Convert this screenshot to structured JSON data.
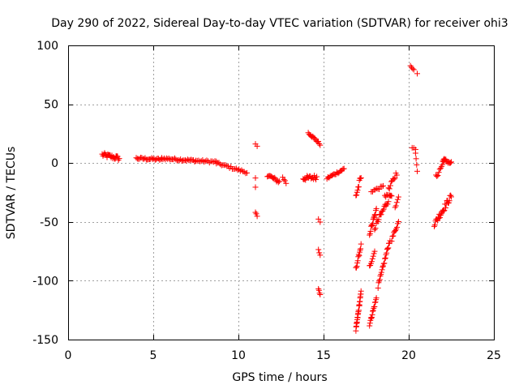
{
  "chart_data": {
    "type": "scatter",
    "title": "Day 290 of 2022, Sidereal Day-to-day VTEC variation (SDTVAR) for receiver ohi3",
    "xlabel": "GPS time / hours",
    "ylabel": "SDTVAR / TECUs",
    "xlim": [
      0,
      25
    ],
    "ylim": [
      -150,
      100
    ],
    "xticks": [
      0,
      5,
      10,
      15,
      20,
      25
    ],
    "yticks": [
      -150,
      -100,
      -50,
      0,
      50,
      100
    ],
    "xtick_labels": [
      "0",
      "5",
      "10",
      "15",
      "20",
      "25"
    ],
    "ytick_labels": [
      "-150",
      "-100",
      "-50",
      "0",
      "50",
      "100"
    ],
    "grid": true,
    "marker": "+",
    "color": "#ff0000",
    "segments": [
      {
        "x": [
          2.0,
          3.0
        ],
        "y": [
          7,
          4
        ],
        "n": 22,
        "spread": 4
      },
      {
        "x": [
          4.0,
          5.5
        ],
        "y": [
          4,
          3
        ],
        "n": 24,
        "spread": 2
      },
      {
        "x": [
          5.5,
          7.5
        ],
        "y": [
          4,
          2
        ],
        "n": 30,
        "spread": 2
      },
      {
        "x": [
          7.5,
          8.7
        ],
        "y": [
          2,
          1
        ],
        "n": 16,
        "spread": 2
      },
      {
        "x": [
          8.7,
          10.5
        ],
        "y": [
          0,
          -8
        ],
        "n": 24,
        "spread": 2
      },
      {
        "x": [
          11.0,
          11.1
        ],
        "y": [
          16,
          14
        ],
        "n": 2,
        "spread": 1
      },
      {
        "x": [
          11.0,
          11.0
        ],
        "y": [
          -13,
          -21
        ],
        "n": 2,
        "spread": 1
      },
      {
        "x": [
          11.0,
          11.1
        ],
        "y": [
          -42,
          -45
        ],
        "n": 3,
        "spread": 1
      },
      {
        "x": [
          11.7,
          12.4
        ],
        "y": [
          -10,
          -16
        ],
        "n": 14,
        "spread": 3
      },
      {
        "x": [
          12.6,
          12.8
        ],
        "y": [
          -12,
          -17
        ],
        "n": 4,
        "spread": 2
      },
      {
        "x": [
          13.8,
          14.6
        ],
        "y": [
          -13,
          -12
        ],
        "n": 18,
        "spread": 4
      },
      {
        "x": [
          14.1,
          14.8
        ],
        "y": [
          26,
          16
        ],
        "n": 14,
        "spread": 2
      },
      {
        "x": [
          14.7,
          14.8
        ],
        "y": [
          -48,
          -50
        ],
        "n": 2,
        "spread": 1
      },
      {
        "x": [
          14.7,
          14.8
        ],
        "y": [
          -74,
          -78
        ],
        "n": 3,
        "spread": 1
      },
      {
        "x": [
          14.7,
          14.8
        ],
        "y": [
          -107,
          -112
        ],
        "n": 4,
        "spread": 1
      },
      {
        "x": [
          15.2,
          16.2
        ],
        "y": [
          -13,
          -5
        ],
        "n": 18,
        "spread": 2
      },
      {
        "x": [
          16.9,
          17.2
        ],
        "y": [
          -28,
          -12
        ],
        "n": 10,
        "spread": 6
      },
      {
        "x": [
          16.9,
          17.2
        ],
        "y": [
          -90,
          -70
        ],
        "n": 12,
        "spread": 3
      },
      {
        "x": [
          16.9,
          17.2
        ],
        "y": [
          -142,
          -110
        ],
        "n": 24,
        "spread": 3
      },
      {
        "x": [
          17.7,
          18.1
        ],
        "y": [
          -60,
          -40
        ],
        "n": 14,
        "spread": 4
      },
      {
        "x": [
          17.7,
          18.0
        ],
        "y": [
          -88,
          -75
        ],
        "n": 8,
        "spread": 3
      },
      {
        "x": [
          17.7,
          18.1
        ],
        "y": [
          -137,
          -115
        ],
        "n": 16,
        "spread": 3
      },
      {
        "x": [
          17.8,
          18.5
        ],
        "y": [
          -24,
          -20
        ],
        "n": 10,
        "spread": 2
      },
      {
        "x": [
          18.0,
          19.0
        ],
        "y": [
          -55,
          -25
        ],
        "n": 22,
        "spread": 6
      },
      {
        "x": [
          18.2,
          18.9
        ],
        "y": [
          -105,
          -65
        ],
        "n": 22,
        "spread": 3
      },
      {
        "x": [
          18.6,
          19.3
        ],
        "y": [
          -30,
          -8
        ],
        "n": 14,
        "spread": 5
      },
      {
        "x": [
          19.0,
          19.4
        ],
        "y": [
          -65,
          -50
        ],
        "n": 10,
        "spread": 3
      },
      {
        "x": [
          19.2,
          19.4
        ],
        "y": [
          -38,
          -28
        ],
        "n": 5,
        "spread": 2
      },
      {
        "x": [
          20.1,
          20.3
        ],
        "y": [
          83,
          79
        ],
        "n": 4,
        "spread": 1
      },
      {
        "x": [
          20.5,
          20.5
        ],
        "y": [
          76,
          76
        ],
        "n": 1,
        "spread": 0
      },
      {
        "x": [
          20.2,
          20.4
        ],
        "y": [
          13,
          12
        ],
        "n": 3,
        "spread": 1
      },
      {
        "x": [
          20.4,
          20.5
        ],
        "y": [
          8,
          -6
        ],
        "n": 4,
        "spread": 2
      },
      {
        "x": [
          21.5,
          22.5
        ],
        "y": [
          -52,
          -28
        ],
        "n": 28,
        "spread": 5
      },
      {
        "x": [
          21.6,
          22.1
        ],
        "y": [
          -12,
          2
        ],
        "n": 10,
        "spread": 4
      },
      {
        "x": [
          22.0,
          22.5
        ],
        "y": [
          3,
          0
        ],
        "n": 12,
        "spread": 3
      }
    ]
  }
}
